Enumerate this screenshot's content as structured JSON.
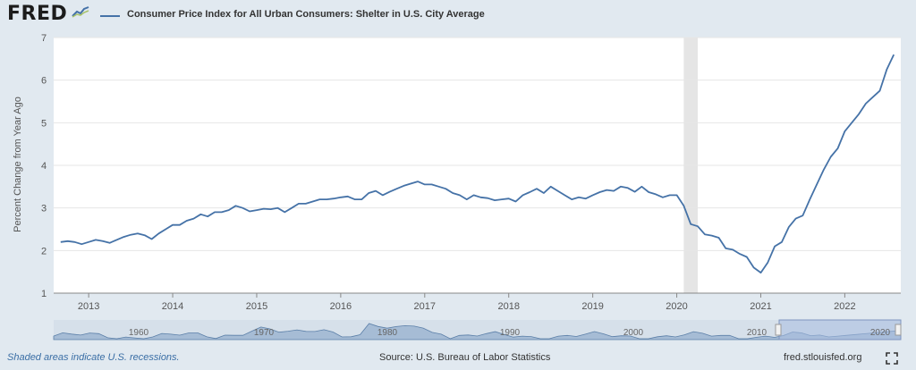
{
  "header": {
    "logo_text": "FRED",
    "logo_graph_icon": "trend-line-icon"
  },
  "chart_data": {
    "type": "line",
    "series": [
      {
        "name": "Consumer Price Index for All Urban Consumers: Shelter in U.S. City Average",
        "color": "#4572a7",
        "points": [
          [
            "2012-09",
            2.2
          ],
          [
            "2012-10",
            2.22
          ],
          [
            "2012-11",
            2.2
          ],
          [
            "2012-12",
            2.15
          ],
          [
            "2013-01",
            2.2
          ],
          [
            "2013-02",
            2.25
          ],
          [
            "2013-03",
            2.22
          ],
          [
            "2013-04",
            2.18
          ],
          [
            "2013-05",
            2.25
          ],
          [
            "2013-06",
            2.32
          ],
          [
            "2013-07",
            2.37
          ],
          [
            "2013-08",
            2.4
          ],
          [
            "2013-09",
            2.36
          ],
          [
            "2013-10",
            2.27
          ],
          [
            "2013-11",
            2.4
          ],
          [
            "2013-12",
            2.5
          ],
          [
            "2014-01",
            2.6
          ],
          [
            "2014-02",
            2.6
          ],
          [
            "2014-03",
            2.7
          ],
          [
            "2014-04",
            2.75
          ],
          [
            "2014-05",
            2.85
          ],
          [
            "2014-06",
            2.8
          ],
          [
            "2014-07",
            2.9
          ],
          [
            "2014-08",
            2.9
          ],
          [
            "2014-09",
            2.95
          ],
          [
            "2014-10",
            3.05
          ],
          [
            "2014-11",
            3.0
          ],
          [
            "2014-12",
            2.92
          ],
          [
            "2015-01",
            2.95
          ],
          [
            "2015-02",
            2.98
          ],
          [
            "2015-03",
            2.97
          ],
          [
            "2015-04",
            3.0
          ],
          [
            "2015-05",
            2.9
          ],
          [
            "2015-06",
            3.0
          ],
          [
            "2015-07",
            3.1
          ],
          [
            "2015-08",
            3.1
          ],
          [
            "2015-09",
            3.15
          ],
          [
            "2015-10",
            3.2
          ],
          [
            "2015-11",
            3.2
          ],
          [
            "2015-12",
            3.22
          ],
          [
            "2016-01",
            3.25
          ],
          [
            "2016-02",
            3.27
          ],
          [
            "2016-03",
            3.2
          ],
          [
            "2016-04",
            3.2
          ],
          [
            "2016-05",
            3.35
          ],
          [
            "2016-06",
            3.4
          ],
          [
            "2016-07",
            3.3
          ],
          [
            "2016-08",
            3.38
          ],
          [
            "2016-09",
            3.45
          ],
          [
            "2016-10",
            3.52
          ],
          [
            "2016-11",
            3.57
          ],
          [
            "2016-12",
            3.62
          ],
          [
            "2017-01",
            3.55
          ],
          [
            "2017-02",
            3.55
          ],
          [
            "2017-03",
            3.5
          ],
          [
            "2017-04",
            3.45
          ],
          [
            "2017-05",
            3.35
          ],
          [
            "2017-06",
            3.3
          ],
          [
            "2017-07",
            3.2
          ],
          [
            "2017-08",
            3.3
          ],
          [
            "2017-09",
            3.25
          ],
          [
            "2017-10",
            3.23
          ],
          [
            "2017-11",
            3.18
          ],
          [
            "2017-12",
            3.2
          ],
          [
            "2018-01",
            3.22
          ],
          [
            "2018-02",
            3.15
          ],
          [
            "2018-03",
            3.3
          ],
          [
            "2018-04",
            3.37
          ],
          [
            "2018-05",
            3.45
          ],
          [
            "2018-06",
            3.35
          ],
          [
            "2018-07",
            3.5
          ],
          [
            "2018-08",
            3.4
          ],
          [
            "2018-09",
            3.3
          ],
          [
            "2018-10",
            3.2
          ],
          [
            "2018-11",
            3.25
          ],
          [
            "2018-12",
            3.22
          ],
          [
            "2019-01",
            3.3
          ],
          [
            "2019-02",
            3.37
          ],
          [
            "2019-03",
            3.42
          ],
          [
            "2019-04",
            3.4
          ],
          [
            "2019-05",
            3.5
          ],
          [
            "2019-06",
            3.47
          ],
          [
            "2019-07",
            3.38
          ],
          [
            "2019-08",
            3.5
          ],
          [
            "2019-09",
            3.37
          ],
          [
            "2019-10",
            3.32
          ],
          [
            "2019-11",
            3.25
          ],
          [
            "2019-12",
            3.3
          ],
          [
            "2020-01",
            3.3
          ],
          [
            "2020-02",
            3.05
          ],
          [
            "2020-03",
            2.62
          ],
          [
            "2020-04",
            2.57
          ],
          [
            "2020-05",
            2.38
          ],
          [
            "2020-06",
            2.35
          ],
          [
            "2020-07",
            2.3
          ],
          [
            "2020-08",
            2.05
          ],
          [
            "2020-09",
            2.02
          ],
          [
            "2020-10",
            1.92
          ],
          [
            "2020-11",
            1.85
          ],
          [
            "2020-12",
            1.6
          ],
          [
            "2021-01",
            1.48
          ],
          [
            "2021-02",
            1.72
          ],
          [
            "2021-03",
            2.1
          ],
          [
            "2021-04",
            2.2
          ],
          [
            "2021-05",
            2.55
          ],
          [
            "2021-06",
            2.75
          ],
          [
            "2021-07",
            2.82
          ],
          [
            "2021-08",
            3.2
          ],
          [
            "2021-09",
            3.55
          ],
          [
            "2021-10",
            3.9
          ],
          [
            "2021-11",
            4.2
          ],
          [
            "2021-12",
            4.4
          ],
          [
            "2022-01",
            4.8
          ],
          [
            "2022-02",
            5.0
          ],
          [
            "2022-03",
            5.2
          ],
          [
            "2022-04",
            5.45
          ],
          [
            "2022-05",
            5.6
          ],
          [
            "2022-06",
            5.75
          ],
          [
            "2022-07",
            6.25
          ],
          [
            "2022-08",
            6.6
          ]
        ]
      }
    ],
    "ylabel": "Percent Change from Year Ago",
    "ylim": [
      1,
      7
    ],
    "yticks": [
      1,
      2,
      3,
      4,
      5,
      6,
      7
    ],
    "xlim": [
      "2012-08",
      "2022-09"
    ],
    "xticks": [
      "2013",
      "2014",
      "2015",
      "2016",
      "2017",
      "2018",
      "2019",
      "2020",
      "2021",
      "2022"
    ],
    "recessions": [
      [
        "2020-02",
        "2020-04"
      ]
    ],
    "grid": "horizontal",
    "legend": "top-left"
  },
  "navigator": {
    "labels": [
      "1960",
      "1970",
      "1980",
      "1990",
      "2000",
      "2010",
      "2020"
    ]
  },
  "footer": {
    "recession_note": "Shaded areas indicate U.S. recessions.",
    "source": "Source: U.S. Bureau of Labor Statistics",
    "site": "fred.stlouisfed.org"
  },
  "icons": {
    "fullscreen": "expand-icon"
  }
}
